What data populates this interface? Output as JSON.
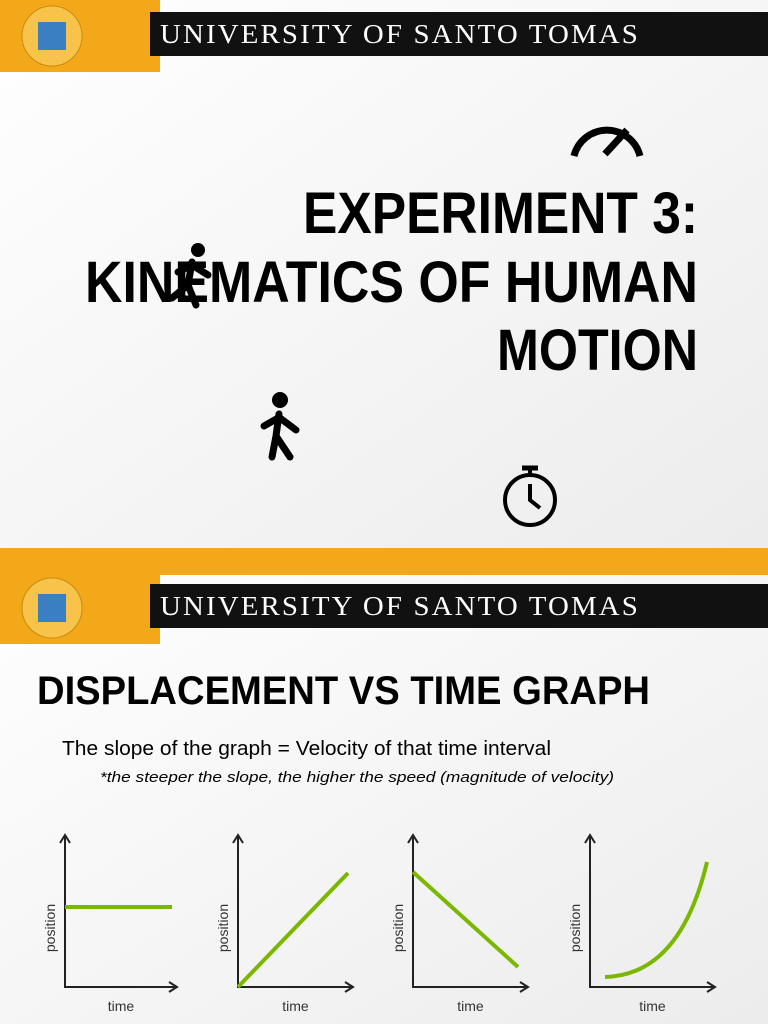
{
  "slides": [
    {
      "header": "UNIVERSITY OF SANTO TOMAS",
      "title_lines": [
        "EXPERIMENT 3:",
        "KINEMATICS OF HUMAN",
        "MOTION"
      ]
    },
    {
      "header": "UNIVERSITY OF SANTO TOMAS",
      "title": "DISPLACEMENT VS TIME GRAPH",
      "body": "The slope of the graph = Velocity of that time interval",
      "note": "*the steeper the slope, the higher the speed (magnitude of velocity)",
      "graphs": [
        {
          "y_label": "position",
          "x_label": "time"
        },
        {
          "y_label": "position",
          "x_label": "time"
        },
        {
          "y_label": "position",
          "x_label": "time"
        },
        {
          "y_label": "position",
          "x_label": "time"
        }
      ]
    }
  ]
}
